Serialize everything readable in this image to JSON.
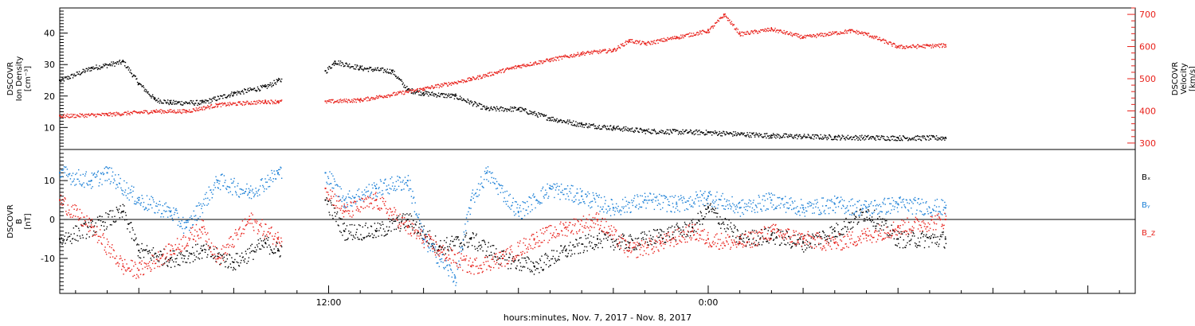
{
  "footer_label": "hours:minutes, Nov.  7, 2017 - Nov.  8, 2017",
  "colors": {
    "black": "#000000",
    "red": "#e8201a",
    "blue": "#1a7fd6"
  },
  "chart_data": [
    {
      "type": "scatter",
      "title": "",
      "ylabel_lines": [
        "DSCOVR",
        "Ion Density",
        "[cm⁻³]"
      ],
      "y2label_lines": [
        "DSCOVR",
        "Velocity",
        "[km/s]"
      ],
      "ylim": [
        3,
        48
      ],
      "y2lim": [
        280,
        720
      ],
      "yticks": [
        10,
        20,
        30,
        40
      ],
      "y2ticks": [
        300,
        400,
        500,
        600,
        700
      ],
      "xticks": [
        {
          "hour": 12,
          "label": "12:00"
        },
        {
          "hour": 24,
          "label": "0:00"
        }
      ],
      "xlim_hours": [
        3.5,
        37.5
      ],
      "gap_hours": [
        10.5,
        11.9
      ],
      "series": [
        {
          "key": "density",
          "axis": "left",
          "color": "black",
          "x": [
            3.5,
            4.5,
            5.5,
            6.0,
            6.5,
            7.0,
            8.0,
            9.0,
            10.0,
            10.4,
            11.9,
            12.2,
            13.0,
            14.0,
            14.5,
            15.0,
            16.0,
            17.0,
            18.0,
            19.0,
            20.0,
            21.0,
            22.0,
            24.0,
            26.0,
            28.0,
            30.0,
            31.5
          ],
          "y": [
            25,
            29,
            31,
            24,
            19,
            18,
            18,
            21,
            23,
            25,
            28,
            31,
            29,
            28,
            22,
            21,
            20,
            16,
            16,
            13,
            11,
            10,
            9,
            8.5,
            7.5,
            7,
            6.8,
            6.8
          ]
        },
        {
          "key": "velocity",
          "axis": "right",
          "color": "red",
          "x": [
            3.5,
            5.0,
            6.5,
            7.5,
            8.5,
            10.0,
            10.4,
            11.9,
            13.0,
            15.0,
            16.5,
            18.0,
            19.0,
            20.0,
            21.0,
            21.5,
            22.0,
            23.0,
            24.0,
            24.5,
            25.0,
            26.0,
            27.0,
            28.5,
            29.0,
            30.0,
            31.5
          ],
          "y": [
            385,
            390,
            400,
            400,
            420,
            430,
            430,
            430,
            435,
            470,
            500,
            540,
            560,
            580,
            590,
            620,
            610,
            630,
            650,
            700,
            640,
            655,
            630,
            650,
            640,
            600,
            605
          ]
        }
      ]
    },
    {
      "type": "scatter",
      "title": "",
      "ylabel_lines": [
        "DSCOVR",
        "B",
        "[nT]"
      ],
      "ylim": [
        -19,
        18
      ],
      "yticks": [
        -10,
        0,
        10
      ],
      "zero_line": true,
      "xticks": [
        {
          "hour": 12,
          "label": "12:00"
        },
        {
          "hour": 24,
          "label": "0:00"
        }
      ],
      "xlim_hours": [
        3.5,
        37.5
      ],
      "gap_hours": [
        10.5,
        11.9
      ],
      "legend_position": "right",
      "series": [
        {
          "key": "bx",
          "name": "Bₓ",
          "color": "black",
          "x": [
            3.5,
            4.5,
            5.5,
            6.0,
            7.0,
            8.0,
            9.0,
            10.0,
            10.4,
            11.9,
            12.5,
            13.5,
            14.5,
            15.5,
            16.5,
            17.5,
            18.5,
            19.5,
            20.5,
            21.5,
            22.5,
            23.5,
            24.0,
            25.0,
            26.0,
            27.0,
            28.0,
            29.0,
            30.0,
            31.5
          ],
          "y": [
            -5,
            -2,
            2,
            -8,
            -10,
            -8,
            -11,
            -6,
            -8,
            5,
            -3,
            -3,
            0,
            -7,
            -5,
            -10,
            -12,
            -8,
            -5,
            -6,
            -4,
            -2,
            3,
            -5,
            -4,
            -6,
            -3,
            2,
            -5,
            -5
          ]
        },
        {
          "key": "by",
          "name": "Bᵧ",
          "color": "blue",
          "x": [
            3.5,
            4.5,
            5.0,
            6.0,
            7.0,
            7.5,
            8.5,
            9.5,
            10.4,
            11.9,
            12.5,
            13.5,
            14.5,
            15.0,
            16.0,
            16.5,
            17.0,
            18.0,
            19.0,
            20.0,
            21.0,
            22.0,
            23.0,
            24.0,
            25.0,
            26.0,
            27.0,
            28.0,
            29.0,
            30.0,
            31.5
          ],
          "y": [
            12,
            10,
            12,
            5,
            2,
            -2,
            10,
            7,
            12,
            12,
            5,
            8,
            10,
            -5,
            -15,
            5,
            12,
            2,
            8,
            6,
            3,
            5,
            4,
            6,
            3,
            5,
            3,
            4,
            3,
            4,
            3
          ]
        },
        {
          "key": "bz",
          "name": "B_z",
          "color": "red",
          "x": [
            3.5,
            4.5,
            5.5,
            6.0,
            7.0,
            8.0,
            8.5,
            9.5,
            10.4,
            11.9,
            12.5,
            13.5,
            14.5,
            15.5,
            16.5,
            17.5,
            18.5,
            19.5,
            20.5,
            21.5,
            22.5,
            23.5,
            24.0,
            25.0,
            26.0,
            27.0,
            28.0,
            29.0,
            30.0,
            31.5
          ],
          "y": [
            5,
            -2,
            -12,
            -13,
            -8,
            -2,
            -10,
            0,
            -5,
            8,
            2,
            5,
            -2,
            -8,
            -12,
            -10,
            -5,
            -2,
            0,
            -8,
            -6,
            -3,
            -5,
            -6,
            -3,
            -5,
            -6,
            -4,
            -2,
            0
          ]
        }
      ]
    }
  ]
}
